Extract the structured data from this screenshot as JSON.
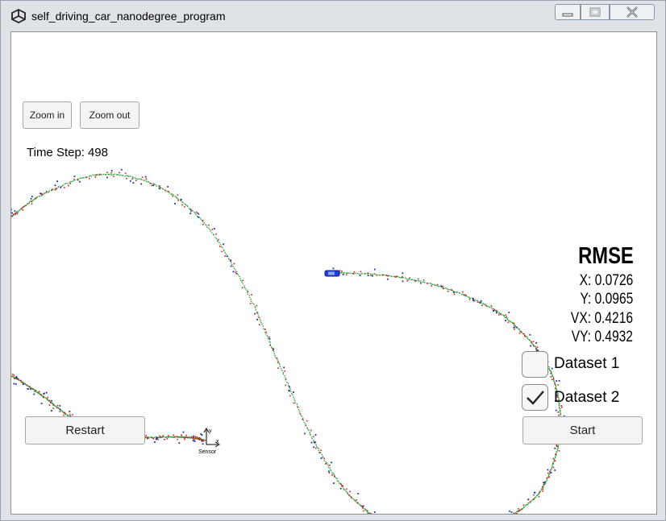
{
  "window": {
    "title": "self_driving_car_nanodegree_program",
    "icon": "unity-logo-icon",
    "controls": [
      "minimize-icon",
      "maximize-icon",
      "close-icon"
    ]
  },
  "toolbar": {
    "zoom_in_label": "Zoom in",
    "zoom_out_label": "Zoom out"
  },
  "time_step": {
    "label": "Time Step:",
    "value": "498"
  },
  "rmse": {
    "title": "RMSE",
    "x": "X: 0.0726",
    "y": "Y: 0.0965",
    "vx": "VX: 0.4216",
    "vy": "VY: 0.4932"
  },
  "datasets": [
    {
      "label": "Dataset 1",
      "checked": false
    },
    {
      "label": "Dataset 2",
      "checked": true
    }
  ],
  "buttons": {
    "restart_label": "Restart",
    "start_label": "Start"
  },
  "sensor": {
    "label": "Sensor",
    "axis_x": "x",
    "axis_y": "y"
  },
  "colors": {
    "trajectory": "#2e9e3a",
    "lidar": "#d42020",
    "radar": "#1a2fb0",
    "car": "#1f3fd6"
  }
}
